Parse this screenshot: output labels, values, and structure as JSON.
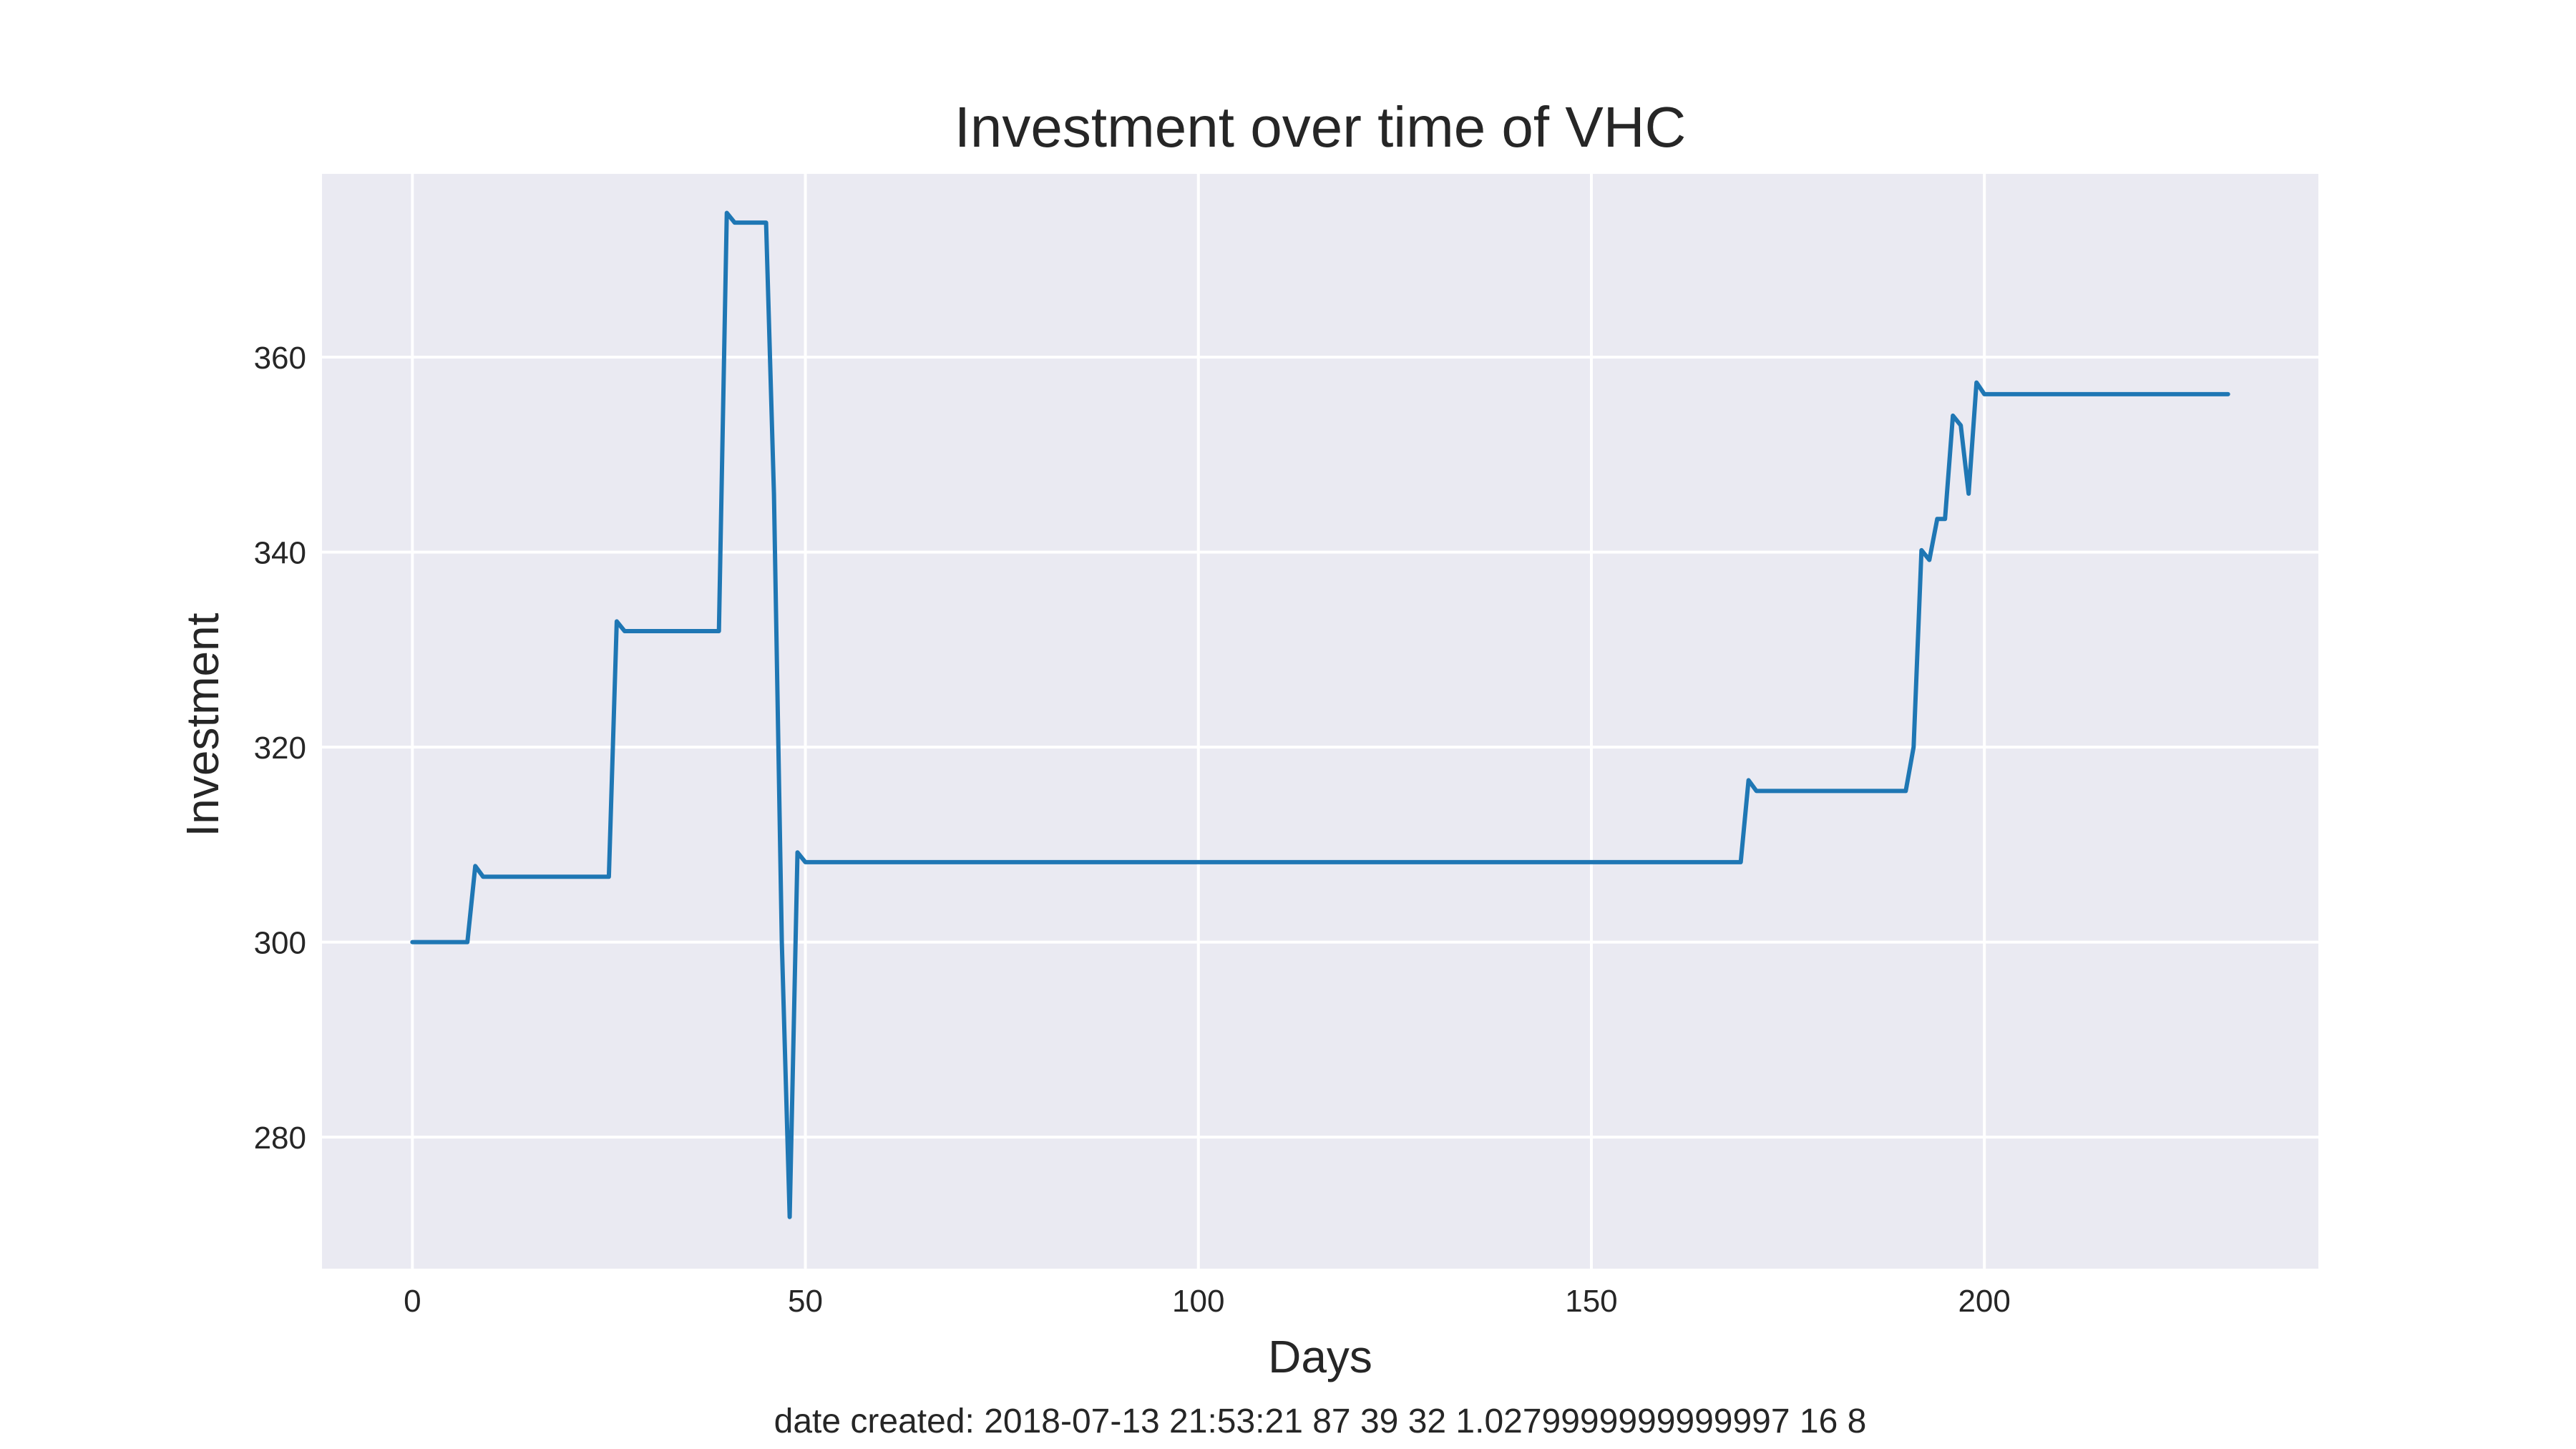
{
  "chart_data": {
    "type": "line",
    "title": "Investment over time of VHC",
    "xlabel": "Days",
    "ylabel": "Investment",
    "footnote": "date created: 2018-07-13 21:53:21 87 39 32 1.0279999999999997 16 8",
    "xlim": [
      -11.5,
      242.5
    ],
    "ylim": [
      266.5,
      378.8
    ],
    "x_ticks": [
      0,
      50,
      100,
      150,
      200
    ],
    "y_ticks": [
      280,
      300,
      320,
      340,
      360
    ],
    "grid": true,
    "style": "seaborn-darkgrid",
    "colors": {
      "plot_background": "#eaeaf2",
      "grid": "#ffffff",
      "line": "#1f77b4",
      "text": "#262626"
    },
    "series": [
      {
        "color": "#1f77b4",
        "points": [
          [
            0,
            300
          ],
          [
            7,
            300
          ],
          [
            8,
            307.8
          ],
          [
            9,
            306.7
          ],
          [
            25,
            306.7
          ],
          [
            26,
            332.9
          ],
          [
            27,
            331.9
          ],
          [
            39,
            331.9
          ],
          [
            40,
            374.8
          ],
          [
            41,
            373.8
          ],
          [
            45,
            373.8
          ],
          [
            46,
            346
          ],
          [
            47,
            300
          ],
          [
            48,
            271.8
          ],
          [
            49,
            309.2
          ],
          [
            50,
            308.2
          ],
          [
            169,
            308.2
          ],
          [
            170,
            316.6
          ],
          [
            171,
            315.5
          ],
          [
            190,
            315.5
          ],
          [
            191,
            320
          ],
          [
            192,
            340.2
          ],
          [
            193,
            339.2
          ],
          [
            194,
            343.4
          ],
          [
            195,
            343.4
          ],
          [
            196,
            354
          ],
          [
            197,
            353
          ],
          [
            198,
            346
          ],
          [
            199,
            357.4
          ],
          [
            200,
            356.2
          ],
          [
            231,
            356.2
          ]
        ]
      }
    ]
  }
}
